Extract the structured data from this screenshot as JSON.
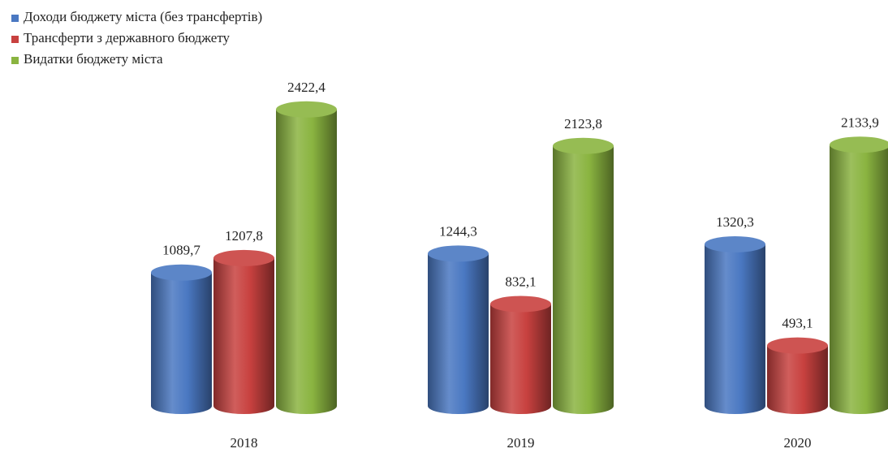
{
  "chart_data": {
    "type": "bar",
    "categories": [
      "2018",
      "2019",
      "2020"
    ],
    "series": [
      {
        "name": "Доходи бюджету міста (без трансфертів)",
        "values": [
          1089.7,
          1244.3,
          1320.3
        ],
        "labels": [
          "1089,7",
          "1244,3",
          "1320,3"
        ],
        "color": "#4a78c2"
      },
      {
        "name": "Трансферти з державного бюджету",
        "values": [
          1207.8,
          832.1,
          493.1
        ],
        "labels": [
          "1207,8",
          "832,1",
          "493,1"
        ],
        "color": "#c8413f"
      },
      {
        "name": "Видатки бюджету міста",
        "values": [
          2422.4,
          2123.8,
          2133.9
        ],
        "labels": [
          "2422,4",
          "2123,8",
          "2133,9"
        ],
        "color": "#8ab440"
      }
    ],
    "title": "",
    "xlabel": "",
    "ylabel": "",
    "ylim": [
      0,
      2600
    ],
    "grid": false,
    "legend_position": "top-left",
    "style": "3d-cylinder"
  }
}
